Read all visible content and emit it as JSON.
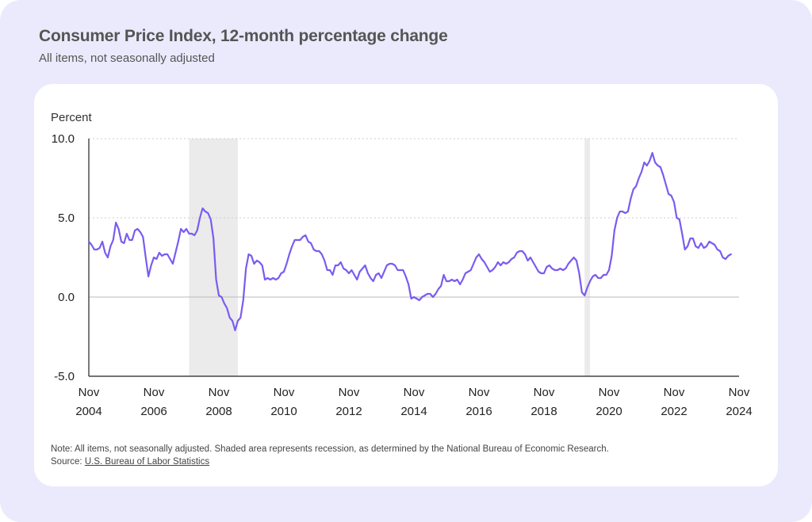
{
  "header": {
    "title": "Consumer Price Index, 12-month percentage change",
    "subtitle": "All items, not seasonally adjusted"
  },
  "footer": {
    "note": "Note: All items, not seasonally adjusted. Shaded area represents recession, as determined by the National Bureau of Economic Research.",
    "source_prefix": "Source: ",
    "source_link": "U.S. Bureau of Labor Statistics"
  },
  "colors": {
    "line": "#7a5cf0",
    "recession": "#ebebeb",
    "axis": "#222222",
    "grid": "#cccccc",
    "zero_line": "#bbbbbb"
  },
  "chart_data": {
    "type": "line",
    "ylabel": "Percent",
    "ylim": [
      -5,
      10
    ],
    "yticks": [
      "10.0",
      "5.0",
      "0.0",
      "-5.0"
    ],
    "xlim": [
      "2004-11",
      "2024-11"
    ],
    "xticks": [
      {
        "month": "Nov",
        "year": "2004"
      },
      {
        "month": "Nov",
        "year": "2006"
      },
      {
        "month": "Nov",
        "year": "2008"
      },
      {
        "month": "Nov",
        "year": "2010"
      },
      {
        "month": "Nov",
        "year": "2012"
      },
      {
        "month": "Nov",
        "year": "2014"
      },
      {
        "month": "Nov",
        "year": "2016"
      },
      {
        "month": "Nov",
        "year": "2018"
      },
      {
        "month": "Nov",
        "year": "2020"
      },
      {
        "month": "Nov",
        "year": "2022"
      },
      {
        "month": "Nov",
        "year": "2024"
      }
    ],
    "grid": "horizontal dotted",
    "recessions": [
      {
        "start": "2007-12",
        "end": "2009-06"
      },
      {
        "start": "2020-02",
        "end": "2020-04"
      }
    ],
    "series": [
      {
        "start": "2004-11",
        "frequency": "monthly",
        "values": [
          3.5,
          3.3,
          3.0,
          3.0,
          3.1,
          3.5,
          2.8,
          2.5,
          3.2,
          3.6,
          4.7,
          4.3,
          3.5,
          3.4,
          4.0,
          3.6,
          3.6,
          4.2,
          4.3,
          4.1,
          3.8,
          2.5,
          1.3,
          2.0,
          2.5,
          2.4,
          2.8,
          2.6,
          2.7,
          2.7,
          2.4,
          2.1,
          2.8,
          3.5,
          4.3,
          4.1,
          4.3,
          4.0,
          4.0,
          3.9,
          4.2,
          5.0,
          5.6,
          5.4,
          5.3,
          4.9,
          3.7,
          1.1,
          0.1,
          0.0,
          -0.4,
          -0.7,
          -1.3,
          -1.5,
          -2.1,
          -1.5,
          -1.3,
          -0.2,
          1.8,
          2.7,
          2.6,
          2.1,
          2.3,
          2.2,
          2.0,
          1.1,
          1.2,
          1.1,
          1.2,
          1.1,
          1.2,
          1.5,
          1.6,
          2.1,
          2.7,
          3.2,
          3.6,
          3.6,
          3.6,
          3.8,
          3.9,
          3.5,
          3.4,
          3.0,
          2.9,
          2.9,
          2.7,
          2.3,
          1.7,
          1.7,
          1.4,
          2.0,
          2.0,
          2.2,
          1.8,
          1.7,
          1.5,
          1.7,
          1.4,
          1.1,
          1.6,
          1.8,
          2.0,
          1.5,
          1.2,
          1.0,
          1.4,
          1.5,
          1.2,
          1.6,
          2.0,
          2.1,
          2.1,
          2.0,
          1.7,
          1.7,
          1.7,
          1.3,
          0.8,
          -0.1,
          0.0,
          -0.1,
          -0.2,
          0.0,
          0.1,
          0.2,
          0.2,
          0.0,
          0.2,
          0.5,
          0.7,
          1.4,
          1.0,
          1.0,
          1.1,
          1.0,
          1.1,
          0.8,
          1.1,
          1.5,
          1.6,
          1.7,
          2.1,
          2.5,
          2.7,
          2.4,
          2.2,
          1.9,
          1.6,
          1.7,
          1.9,
          2.2,
          2.0,
          2.2,
          2.1,
          2.2,
          2.4,
          2.5,
          2.8,
          2.9,
          2.9,
          2.7,
          2.3,
          2.5,
          2.2,
          1.9,
          1.6,
          1.5,
          1.5,
          1.9,
          2.0,
          1.8,
          1.7,
          1.7,
          1.8,
          1.7,
          1.8,
          2.1,
          2.3,
          2.5,
          2.3,
          1.5,
          0.3,
          0.1,
          0.6,
          1.0,
          1.3,
          1.4,
          1.2,
          1.2,
          1.4,
          1.4,
          1.7,
          2.6,
          4.2,
          5.0,
          5.4,
          5.4,
          5.3,
          5.4,
          6.2,
          6.8,
          7.0,
          7.5,
          7.9,
          8.5,
          8.3,
          8.6,
          9.1,
          8.5,
          8.3,
          8.2,
          7.7,
          7.1,
          6.5,
          6.4,
          6.0,
          5.0,
          4.9,
          4.0,
          3.0,
          3.2,
          3.7,
          3.7,
          3.2,
          3.1,
          3.4,
          3.1,
          3.2,
          3.5,
          3.4,
          3.3,
          3.0,
          2.9,
          2.5,
          2.4,
          2.6,
          2.7
        ]
      }
    ]
  }
}
